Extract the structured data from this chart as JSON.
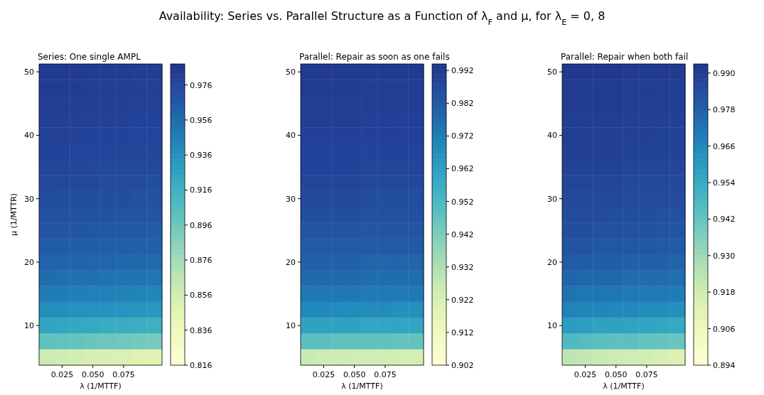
{
  "chart_data": [
    {
      "type": "heatmap",
      "title": "Series: One single AMPL",
      "xlabel": "λ (1/MTTF)",
      "ylabel": "μ (1/MTTR)",
      "annotations": [
        "Availability: Series vs. Parallel Structure as a Function of λ$_{F}$ and μ, for λ$_{E}$ = 0, 8"
      ],
      "categories": [
        null,
        "0.025",
        null,
        "0.050",
        null,
        "0.075",
        null,
        null
      ],
      "y_categories": [
        "50",
        null,
        null,
        null,
        "40",
        null,
        null,
        null,
        "30",
        null,
        null,
        null,
        "20",
        null,
        null,
        null,
        "10",
        null,
        null
      ],
      "clim": [
        0.816,
        0.988
      ],
      "cticks": [
        0.816,
        0.836,
        0.856,
        0.876,
        0.896,
        0.916,
        0.936,
        0.956,
        0.976
      ],
      "cells": [
        [
          0.984,
          0.984,
          0.984,
          0.983,
          0.983,
          0.983,
          0.982,
          0.982
        ],
        [
          0.983,
          0.983,
          0.983,
          0.982,
          0.982,
          0.982,
          0.981,
          0.981
        ],
        [
          0.982,
          0.982,
          0.982,
          0.981,
          0.981,
          0.981,
          0.98,
          0.98
        ],
        [
          0.981,
          0.981,
          0.981,
          0.98,
          0.98,
          0.98,
          0.979,
          0.979
        ],
        [
          0.98,
          0.98,
          0.98,
          0.979,
          0.979,
          0.979,
          0.978,
          0.978
        ],
        [
          0.979,
          0.979,
          0.978,
          0.978,
          0.978,
          0.977,
          0.977,
          0.977
        ],
        [
          0.977,
          0.977,
          0.977,
          0.976,
          0.976,
          0.976,
          0.975,
          0.975
        ],
        [
          0.976,
          0.975,
          0.975,
          0.975,
          0.974,
          0.974,
          0.974,
          0.973
        ],
        [
          0.974,
          0.973,
          0.973,
          0.973,
          0.972,
          0.972,
          0.971,
          0.971
        ],
        [
          0.971,
          0.971,
          0.97,
          0.97,
          0.97,
          0.969,
          0.969,
          0.968
        ],
        [
          0.969,
          0.968,
          0.968,
          0.967,
          0.967,
          0.966,
          0.966,
          0.965
        ],
        [
          0.965,
          0.965,
          0.964,
          0.964,
          0.963,
          0.963,
          0.962,
          0.962
        ],
        [
          0.961,
          0.96,
          0.96,
          0.959,
          0.959,
          0.958,
          0.958,
          0.957
        ],
        [
          0.956,
          0.955,
          0.954,
          0.954,
          0.953,
          0.952,
          0.952,
          0.951
        ],
        [
          0.949,
          0.948,
          0.947,
          0.946,
          0.946,
          0.945,
          0.944,
          0.943
        ],
        [
          0.939,
          0.938,
          0.937,
          0.936,
          0.936,
          0.935,
          0.934,
          0.933
        ],
        [
          0.925,
          0.924,
          0.923,
          0.922,
          0.92,
          0.919,
          0.918,
          0.917
        ],
        [
          0.902,
          0.901,
          0.9,
          0.898,
          0.897,
          0.896,
          0.894,
          0.893
        ],
        [
          0.86,
          0.858,
          0.856,
          0.854,
          0.853,
          0.851,
          0.849,
          0.847
        ]
      ]
    },
    {
      "type": "heatmap",
      "title": "Parallel: Repair as soon as one fails",
      "xlabel": "λ (1/MTTF)",
      "categories": [
        null,
        "0.025",
        null,
        "0.050",
        null,
        "0.075",
        null,
        null
      ],
      "y_categories": [
        "50",
        null,
        null,
        null,
        "40",
        null,
        null,
        null,
        "30",
        null,
        null,
        null,
        "20",
        null,
        null,
        null,
        "10",
        null,
        null
      ],
      "clim": [
        0.902,
        0.994
      ],
      "cticks": [
        0.902,
        0.912,
        0.922,
        0.932,
        0.942,
        0.952,
        0.962,
        0.972,
        0.982,
        0.992
      ],
      "cells": [
        [
          0.992,
          0.992,
          0.992,
          0.992,
          0.992,
          0.992,
          0.992,
          0.992
        ],
        [
          0.992,
          0.992,
          0.992,
          0.992,
          0.991,
          0.991,
          0.991,
          0.991
        ],
        [
          0.991,
          0.991,
          0.991,
          0.991,
          0.991,
          0.991,
          0.991,
          0.991
        ],
        [
          0.991,
          0.991,
          0.991,
          0.991,
          0.99,
          0.99,
          0.99,
          0.99
        ],
        [
          0.99,
          0.99,
          0.99,
          0.99,
          0.99,
          0.99,
          0.99,
          0.99
        ],
        [
          0.989,
          0.989,
          0.989,
          0.989,
          0.989,
          0.989,
          0.989,
          0.989
        ],
        [
          0.989,
          0.989,
          0.989,
          0.989,
          0.988,
          0.988,
          0.988,
          0.988
        ],
        [
          0.988,
          0.988,
          0.988,
          0.988,
          0.987,
          0.987,
          0.987,
          0.987
        ],
        [
          0.987,
          0.987,
          0.987,
          0.987,
          0.986,
          0.986,
          0.986,
          0.986
        ],
        [
          0.986,
          0.986,
          0.986,
          0.986,
          0.985,
          0.985,
          0.985,
          0.985
        ],
        [
          0.984,
          0.984,
          0.984,
          0.984,
          0.983,
          0.983,
          0.983,
          0.983
        ],
        [
          0.982,
          0.982,
          0.982,
          0.982,
          0.982,
          0.982,
          0.982,
          0.982
        ],
        [
          0.98,
          0.98,
          0.98,
          0.98,
          0.979,
          0.979,
          0.979,
          0.979
        ],
        [
          0.978,
          0.978,
          0.978,
          0.978,
          0.977,
          0.977,
          0.977,
          0.977
        ],
        [
          0.974,
          0.974,
          0.974,
          0.974,
          0.973,
          0.973,
          0.973,
          0.973
        ],
        [
          0.969,
          0.969,
          0.968,
          0.968,
          0.968,
          0.968,
          0.967,
          0.967
        ],
        [
          0.961,
          0.961,
          0.961,
          0.961,
          0.96,
          0.96,
          0.96,
          0.96
        ],
        [
          0.949,
          0.949,
          0.948,
          0.948,
          0.948,
          0.948,
          0.947,
          0.947
        ],
        [
          0.926,
          0.925,
          0.925,
          0.924,
          0.924,
          0.924,
          0.923,
          0.923
        ]
      ]
    },
    {
      "type": "heatmap",
      "title": "Parallel: Repair when both fail",
      "xlabel": "λ (1/MTTF)",
      "categories": [
        null,
        "0.025",
        null,
        "0.050",
        null,
        "0.075",
        null,
        null
      ],
      "y_categories": [
        "50",
        null,
        null,
        null,
        "40",
        null,
        null,
        null,
        "30",
        null,
        null,
        null,
        "20",
        null,
        null,
        null,
        "10",
        null,
        null
      ],
      "clim": [
        0.894,
        0.993
      ],
      "cticks": [
        0.894,
        0.906,
        0.918,
        {
          "value": 0.93,
          "label": "0.930"
        },
        0.942,
        0.954,
        0.966,
        0.978,
        {
          "value": 0.99,
          "label": "0.990"
        }
      ],
      "cells": [
        [
          0.992,
          0.992,
          0.992,
          0.992,
          0.991,
          0.991,
          0.991,
          0.991
        ],
        [
          0.991,
          0.991,
          0.991,
          0.991,
          0.99,
          0.99,
          0.99,
          0.99
        ],
        [
          0.991,
          0.991,
          0.991,
          0.991,
          0.99,
          0.99,
          0.99,
          0.99
        ],
        [
          0.99,
          0.99,
          0.99,
          0.99,
          0.989,
          0.989,
          0.989,
          0.989
        ],
        [
          0.99,
          0.99,
          0.989,
          0.989,
          0.989,
          0.989,
          0.988,
          0.988
        ],
        [
          0.989,
          0.989,
          0.989,
          0.989,
          0.988,
          0.988,
          0.988,
          0.988
        ],
        [
          0.988,
          0.988,
          0.988,
          0.988,
          0.987,
          0.987,
          0.987,
          0.987
        ],
        [
          0.987,
          0.987,
          0.987,
          0.987,
          0.986,
          0.986,
          0.986,
          0.986
        ],
        [
          0.986,
          0.986,
          0.986,
          0.986,
          0.985,
          0.985,
          0.985,
          0.985
        ],
        [
          0.985,
          0.985,
          0.985,
          0.984,
          0.984,
          0.984,
          0.983,
          0.983
        ],
        [
          0.984,
          0.984,
          0.983,
          0.983,
          0.983,
          0.983,
          0.982,
          0.982
        ],
        [
          0.982,
          0.982,
          0.981,
          0.981,
          0.981,
          0.981,
          0.98,
          0.98
        ],
        [
          0.98,
          0.979,
          0.979,
          0.979,
          0.978,
          0.978,
          0.978,
          0.977
        ],
        [
          0.977,
          0.976,
          0.976,
          0.976,
          0.975,
          0.975,
          0.975,
          0.974
        ],
        [
          0.973,
          0.972,
          0.972,
          0.972,
          0.971,
          0.971,
          0.971,
          0.97
        ],
        [
          0.968,
          0.967,
          0.967,
          0.966,
          0.966,
          0.965,
          0.965,
          0.964
        ],
        [
          0.96,
          0.959,
          0.958,
          0.958,
          0.957,
          0.957,
          0.956,
          0.955
        ],
        [
          0.947,
          0.946,
          0.945,
          0.944,
          0.944,
          0.943,
          0.942,
          0.941
        ],
        [
          0.923,
          0.922,
          0.92,
          0.919,
          0.918,
          0.917,
          0.915,
          0.914
        ]
      ]
    }
  ]
}
